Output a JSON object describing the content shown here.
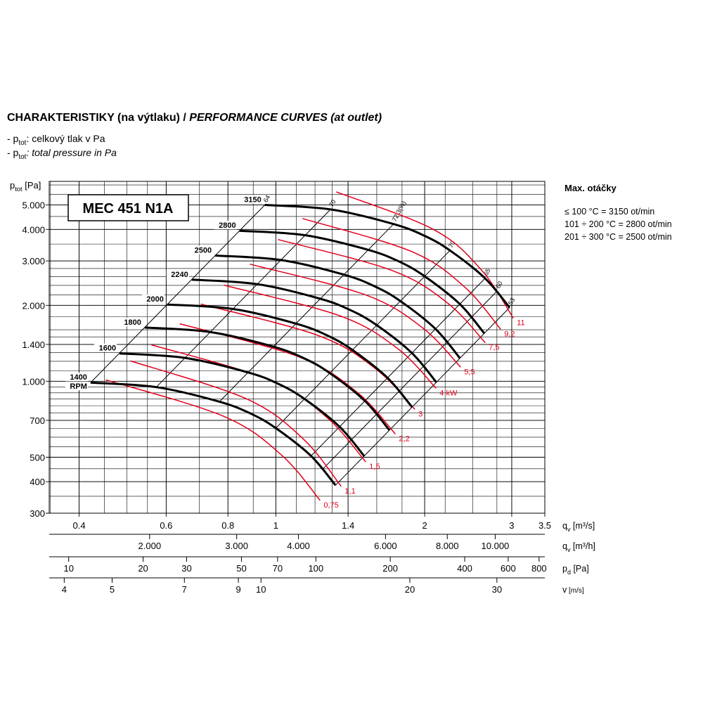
{
  "header": {
    "title_cz": "CHARAKTERISTIKY (na výtlaku) / ",
    "title_en": "PERFORMANCE CURVES (at outlet)",
    "legend": [
      {
        "prefix": "- p",
        "sub": "tot",
        "text": ": celkový tlak v Pa",
        "italic": false
      },
      {
        "prefix": "- p",
        "sub": "tot",
        "text": ": total pressure in Pa",
        "italic": true
      }
    ]
  },
  "notes": {
    "title": "Max. otáčky",
    "lines": [
      "≤ 100 °C = 3150 ot/min",
      "101 ÷ 200 °C = 2800 ot/min",
      "201 ÷ 300 °C = 2500 ot/min"
    ]
  },
  "chart_data": {
    "type": "line",
    "title": "MEC 451 N1A",
    "log_x": true,
    "log_y": true,
    "grid": true,
    "xlim": [
      0.348,
      3.5
    ],
    "ylim": [
      300,
      6200
    ],
    "xticks": [
      0.4,
      0.6,
      0.8,
      1,
      1.4,
      2,
      3,
      3.5
    ],
    "yticks": [
      {
        "value": 5000,
        "label": "5.000"
      },
      {
        "value": 4000,
        "label": "4.000"
      },
      {
        "value": 3000,
        "label": "3.000"
      },
      {
        "value": 2000,
        "label": "2.000"
      },
      {
        "value": 1400,
        "label": "1.400"
      },
      {
        "value": 1000,
        "label": "1.000"
      },
      700,
      500,
      400,
      300
    ],
    "xgrid": [
      0.35,
      0.4,
      0.45,
      0.5,
      0.55,
      0.6,
      0.7,
      0.8,
      0.9,
      1,
      1.1,
      1.2,
      1.3,
      1.4,
      1.6,
      1.8,
      2,
      2.2,
      2.5,
      2.8,
      3
    ],
    "ygrid": [
      350,
      400,
      450,
      500,
      550,
      600,
      650,
      700,
      750,
      800,
      850,
      900,
      950,
      1000,
      1100,
      1200,
      1300,
      1400,
      1500,
      1600,
      1800,
      2000,
      2200,
      2400,
      2600,
      2800,
      3000,
      3500,
      4000,
      4500,
      5000,
      5500,
      6000
    ],
    "y_label": {
      "main": "p",
      "sub": "tot",
      "unit": " [Pa]"
    },
    "x_label": {
      "main": "q",
      "sub": "v",
      "unit": " [m³/s]"
    },
    "extra_axes": [
      {
        "label": {
          "main": "q",
          "sub": "v",
          "unit": " [m³/h]"
        },
        "xlim": [
          1253,
          12600
        ],
        "ticks": [
          {
            "value": 2000,
            "label": "2.000"
          },
          {
            "value": 3000,
            "label": "3.000"
          },
          {
            "value": 4000,
            "label": "4.000"
          },
          {
            "value": 6000,
            "label": "6.000"
          },
          {
            "value": 8000,
            "label": "8.000"
          },
          {
            "value": 10000,
            "label": "10.000"
          }
        ]
      },
      {
        "label": {
          "main": "p",
          "sub": "d",
          "unit": " [Pa]"
        },
        "xlim": [
          8.34,
          844
        ],
        "ticks": [
          10,
          20,
          30,
          50,
          70,
          100,
          200,
          400,
          600,
          800
        ]
      },
      {
        "label": {
          "main": "v",
          "unit": " [m/s]"
        },
        "xlim": [
          3.73,
          37.5
        ],
        "ticks": [
          4,
          5,
          7,
          9,
          10,
          20,
          30
        ]
      }
    ],
    "rpm_color": "#000000",
    "power_color": "#e3001b",
    "efficiency_color": "#000000",
    "rpm_unit": "RPM",
    "series": [
      {
        "name": "1400",
        "x": [
          0.422,
          0.573,
          0.769,
          0.889,
          1.0,
          1.178,
          1.32
        ],
        "values": [
          988,
          948,
          830,
          745,
          652,
          506,
          387
        ]
      },
      {
        "name": "1600",
        "x": [
          0.483,
          0.655,
          0.879,
          1.016,
          1.143,
          1.346,
          1.508
        ],
        "values": [
          1290,
          1238,
          1084,
          973,
          851,
          660,
          506
        ]
      },
      {
        "name": "1800",
        "x": [
          0.543,
          0.737,
          0.989,
          1.143,
          1.286,
          1.514,
          1.697
        ],
        "values": [
          1633,
          1567,
          1371,
          1231,
          1077,
          836,
          640
        ]
      },
      {
        "name": "2000",
        "x": [
          0.603,
          0.819,
          1.098,
          1.27,
          1.429,
          1.682,
          1.886
        ],
        "values": [
          2016,
          1935,
          1693,
          1520,
          1330,
          1032,
          790
        ]
      },
      {
        "name": "2240",
        "x": [
          0.676,
          0.917,
          1.23,
          1.422,
          1.6,
          1.884,
          2.112
        ],
        "values": [
          2529,
          2427,
          2124,
          1906,
          1669,
          1295,
          991
        ]
      },
      {
        "name": "2500",
        "x": [
          0.754,
          1.024,
          1.373,
          1.587,
          1.786,
          2.103,
          2.357
        ],
        "values": [
          3150,
          3024,
          2646,
          2375,
          2079,
          1613,
          1235
        ]
      },
      {
        "name": "2800",
        "x": [
          0.844,
          1.147,
          1.538,
          1.778,
          2.0,
          2.356,
          2.64
        ],
        "values": [
          3951,
          3792,
          3318,
          2979,
          2607,
          2023,
          1549
        ]
      },
      {
        "name": "3150",
        "x": [
          0.95,
          1.29,
          1.73,
          2.0,
          2.25,
          2.65,
          2.97
        ],
        "values": [
          5000,
          4800,
          4200,
          3770,
          3300,
          2560,
          1960
        ]
      }
    ],
    "power_curves": [
      {
        "name": "0,75",
        "x": [
          0.453,
          0.785,
          1.027,
          1.229
        ],
        "values": [
          1013,
          726,
          510,
          337
        ]
      },
      {
        "name": "1,1",
        "x": [
          0.508,
          0.872,
          1.136,
          1.356
        ],
        "values": [
          1204,
          852,
          591,
          383
        ]
      },
      {
        "name": "1,5",
        "x": [
          0.56,
          0.971,
          1.27,
          1.52
        ],
        "values": [
          1395,
          1013,
          717,
          479
        ]
      },
      {
        "name": "2,2",
        "x": [
          0.639,
          1.11,
          1.457,
          1.745
        ],
        "values": [
          1691,
          1252,
          908,
          618
        ]
      },
      {
        "name": "3",
        "x": [
          0.705,
          1.221,
          1.597,
          1.911
        ],
        "values": [
          2023,
          1516,
          1115,
          774
        ]
      },
      {
        "name": "4 kW",
        "x": [
          0.785,
          1.351,
          1.767,
          2.109
        ],
        "values": [
          2405,
          1814,
          1343,
          938
        ]
      },
      {
        "name": "5,5",
        "x": [
          0.886,
          1.52,
          1.982,
          2.365
        ],
        "values": [
          2914,
          2198,
          1627,
          1137
        ]
      },
      {
        "name": "7,5",
        "x": [
          1.01,
          1.716,
          2.23,
          2.652
        ],
        "values": [
          3647,
          2751,
          2036,
          1422
        ]
      },
      {
        "name": "9,2",
        "x": [
          1.132,
          1.881,
          2.412,
          2.85
        ],
        "values": [
          4418,
          3270,
          2359,
          1606
        ]
      },
      {
        "name": "11",
        "x": [
          1.325,
          2.088,
          2.609,
          3.022
        ],
        "values": [
          5636,
          3990,
          2751,
          1779
        ]
      }
    ],
    "efficiency_lines": [
      {
        "name": "64",
        "x": [
          0.95,
          0.422
        ],
        "values": [
          5000,
          988
        ]
      },
      {
        "name": "70",
        "x": [
          1.29,
          0.573
        ],
        "values": [
          4800,
          948
        ]
      },
      {
        "name": "72,3(%)",
        "x": [
          1.73,
          0.769
        ],
        "values": [
          4200,
          830
        ]
      },
      {
        "name": "70",
        "x": [
          2.25,
          1.0
        ],
        "values": [
          3300,
          652
        ]
      },
      {
        "name": "65",
        "x": [
          2.65,
          1.178
        ],
        "values": [
          2560,
          506
        ]
      },
      {
        "name": "60",
        "x": [
          2.804,
          1.246
        ],
        "values": [
          2280,
          450
        ]
      },
      {
        "name": "53",
        "x": [
          2.97,
          1.32
        ],
        "values": [
          1960,
          387
        ]
      }
    ]
  }
}
